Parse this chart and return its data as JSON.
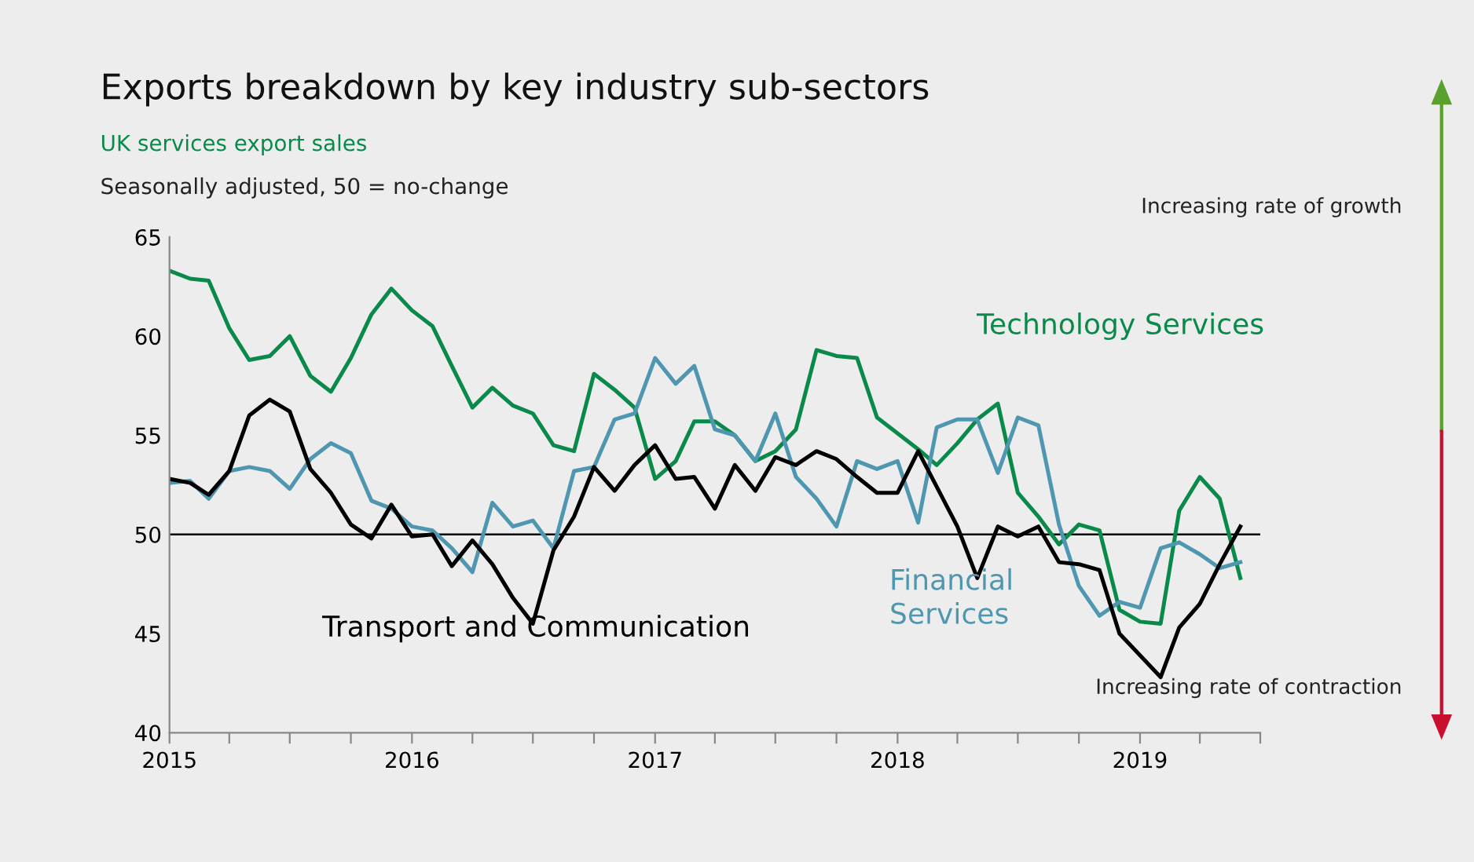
{
  "chart_data": {
    "type": "line",
    "title": "Exports breakdown by key industry sub-sectors",
    "subtitle": "UK services export sales",
    "ylabel": "Seasonally adjusted, 50 = no-change",
    "annotations": [
      "Increasing rate of growth",
      "Increasing rate of contraction"
    ],
    "x": [
      "2015-01",
      "2015-02",
      "2015-03",
      "2015-04",
      "2015-05",
      "2015-06",
      "2015-07",
      "2015-08",
      "2015-09",
      "2015-10",
      "2015-11",
      "2015-12",
      "2016-01",
      "2016-02",
      "2016-03",
      "2016-04",
      "2016-05",
      "2016-06",
      "2016-07",
      "2016-08",
      "2016-09",
      "2016-10",
      "2016-11",
      "2016-12",
      "2017-01",
      "2017-02",
      "2017-03",
      "2017-04",
      "2017-05",
      "2017-06",
      "2017-07",
      "2017-08",
      "2017-09",
      "2017-10",
      "2017-11",
      "2017-12",
      "2018-01",
      "2018-02",
      "2018-03",
      "2018-04",
      "2018-05",
      "2018-06",
      "2018-07",
      "2018-08",
      "2018-09",
      "2018-10",
      "2018-11",
      "2018-12",
      "2019-01",
      "2019-02",
      "2019-03",
      "2019-04",
      "2019-05",
      "2019-06"
    ],
    "series": [
      {
        "name": "Technology Services",
        "color": "#0a8a4a",
        "values": [
          63.3,
          62.9,
          62.8,
          60.4,
          58.8,
          59.0,
          60.0,
          58.0,
          57.2,
          58.9,
          61.1,
          62.4,
          61.3,
          60.5,
          58.5,
          56.4,
          57.4,
          56.5,
          56.1,
          54.5,
          54.2,
          58.1,
          57.3,
          56.4,
          52.8,
          53.7,
          55.7,
          55.7,
          55.0,
          53.7,
          54.2,
          55.3,
          59.3,
          59.0,
          58.9,
          55.9,
          55.1,
          54.3,
          53.5,
          54.6,
          55.8,
          56.6,
          52.1,
          50.9,
          49.5,
          50.5,
          50.2,
          46.2,
          45.6,
          45.5,
          51.2,
          52.9,
          51.8,
          47.8
        ]
      },
      {
        "name": "Financial Services",
        "color": "#4f97b0",
        "values": [
          52.6,
          52.7,
          51.8,
          53.2,
          53.4,
          53.2,
          52.3,
          53.8,
          54.6,
          54.1,
          51.7,
          51.3,
          50.4,
          50.2,
          49.3,
          48.1,
          51.6,
          50.4,
          50.7,
          49.3,
          53.2,
          53.4,
          55.8,
          56.1,
          58.9,
          57.6,
          58.5,
          55.3,
          55.0,
          53.7,
          56.1,
          52.9,
          51.8,
          50.4,
          53.7,
          53.3,
          53.7,
          50.6,
          55.4,
          55.8,
          55.8,
          53.1,
          55.9,
          55.5,
          50.5,
          47.4,
          45.9,
          46.6,
          46.3,
          49.3,
          49.6,
          49.0,
          48.3,
          48.6
        ]
      },
      {
        "name": "Transport and Communication",
        "color": "#000000",
        "values": [
          52.8,
          52.6,
          52.0,
          53.2,
          56.0,
          56.8,
          56.2,
          53.3,
          52.1,
          50.5,
          49.8,
          51.5,
          49.9,
          50.0,
          48.4,
          49.7,
          48.5,
          46.8,
          45.5,
          49.2,
          50.9,
          53.4,
          52.2,
          53.5,
          54.5,
          52.8,
          52.9,
          51.3,
          53.5,
          52.2,
          53.9,
          53.5,
          54.2,
          53.8,
          52.9,
          52.1,
          52.1,
          54.2,
          52.4,
          50.4,
          47.8,
          50.4,
          49.9,
          50.4,
          48.6,
          48.5,
          48.2,
          45.0,
          43.9,
          42.8,
          45.3,
          46.5,
          48.5,
          50.4
        ]
      }
    ],
    "xlim": [
      "2015-01",
      "2019-07"
    ],
    "xticks": [
      {
        "value": "2015-01",
        "label": "2015"
      },
      {
        "value": "2015-04",
        "label": null
      },
      {
        "value": "2015-07",
        "label": null
      },
      {
        "value": "2015-10",
        "label": null
      },
      {
        "value": "2016-01",
        "label": "2016"
      },
      {
        "value": "2016-04",
        "label": null
      },
      {
        "value": "2016-07",
        "label": null
      },
      {
        "value": "2016-10",
        "label": null
      },
      {
        "value": "2017-01",
        "label": "2017"
      },
      {
        "value": "2017-04",
        "label": null
      },
      {
        "value": "2017-07",
        "label": null
      },
      {
        "value": "2017-10",
        "label": null
      },
      {
        "value": "2018-01",
        "label": "2018"
      },
      {
        "value": "2018-04",
        "label": null
      },
      {
        "value": "2018-07",
        "label": null
      },
      {
        "value": "2018-10",
        "label": null
      },
      {
        "value": "2019-01",
        "label": "2019"
      },
      {
        "value": "2019-04",
        "label": null
      },
      {
        "value": "2019-07",
        "label": null
      }
    ],
    "ylim": [
      40,
      65
    ],
    "yticks": [
      40,
      45,
      50,
      55,
      60,
      65
    ],
    "ref_lines": [
      {
        "axis": "y",
        "value": 50,
        "color": "#000000"
      }
    ],
    "grid": false,
    "legend": false,
    "marker": "none",
    "line_style": "solid"
  }
}
